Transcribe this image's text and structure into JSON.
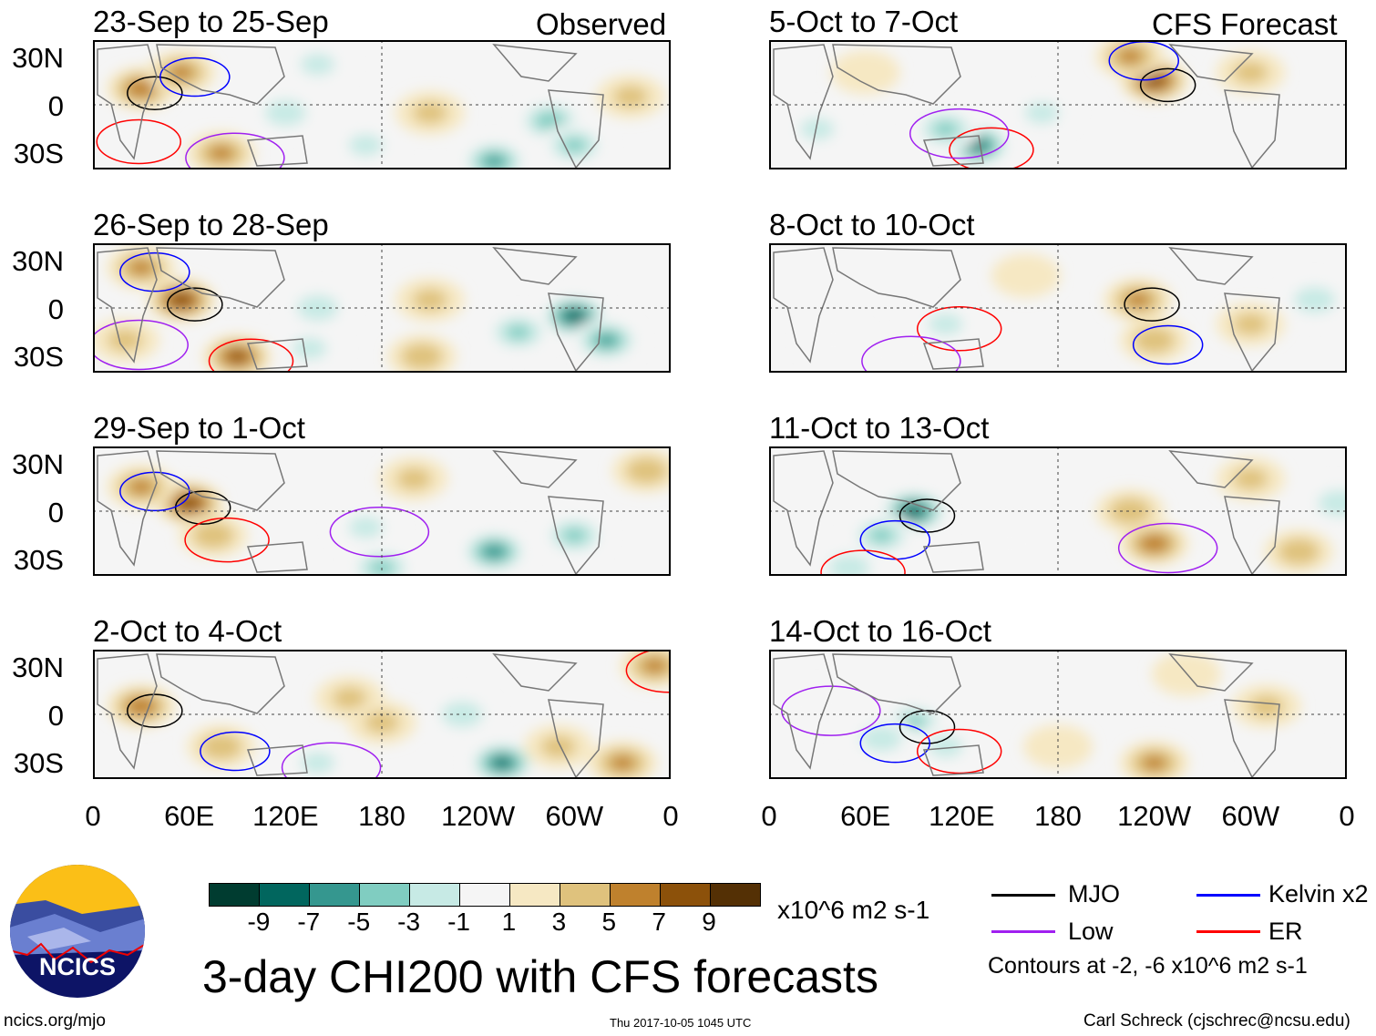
{
  "headers": {
    "observed": "Observed",
    "forecast": "CFS Forecast"
  },
  "lat_labels": [
    "30N",
    "0",
    "30S"
  ],
  "lon_labels": [
    "0",
    "60E",
    "120E",
    "180",
    "120W",
    "60W",
    "0"
  ],
  "panels": [
    {
      "title": "23-Sep to 25-Sep",
      "blobs": [
        [
          30,
          10,
          6
        ],
        [
          55,
          20,
          5
        ],
        [
          20,
          -20,
          -2
        ],
        [
          80,
          -30,
          5
        ],
        [
          140,
          25,
          -3
        ],
        [
          120,
          -5,
          -4
        ],
        [
          170,
          -25,
          -3
        ],
        [
          250,
          -35,
          -7
        ],
        [
          285,
          -10,
          -6
        ],
        [
          300,
          -25,
          -5
        ],
        [
          210,
          -5,
          3
        ],
        [
          335,
          5,
          3
        ]
      ]
    },
    {
      "title": "26-Sep to 28-Sep",
      "blobs": [
        [
          55,
          5,
          8
        ],
        [
          30,
          25,
          5
        ],
        [
          90,
          -30,
          7
        ],
        [
          20,
          -20,
          3
        ],
        [
          140,
          0,
          -4
        ],
        [
          135,
          -25,
          -3
        ],
        [
          210,
          5,
          3
        ],
        [
          300,
          -5,
          -10
        ],
        [
          265,
          -15,
          -5
        ],
        [
          320,
          -20,
          -7
        ],
        [
          205,
          -30,
          4
        ]
      ]
    },
    {
      "title": "29-Sep to 1-Oct",
      "blobs": [
        [
          60,
          5,
          8
        ],
        [
          30,
          15,
          5
        ],
        [
          75,
          -15,
          4
        ],
        [
          170,
          -10,
          -3
        ],
        [
          250,
          -25,
          -8
        ],
        [
          180,
          -35,
          -5
        ],
        [
          230,
          10,
          -2
        ],
        [
          300,
          -15,
          -5
        ],
        [
          200,
          20,
          3
        ],
        [
          345,
          25,
          4
        ]
      ]
    },
    {
      "title": "2-Oct to 4-Oct",
      "blobs": [
        [
          30,
          5,
          6
        ],
        [
          80,
          -20,
          4
        ],
        [
          350,
          30,
          5
        ],
        [
          140,
          -30,
          -3
        ],
        [
          160,
          10,
          3
        ],
        [
          230,
          0,
          -4
        ],
        [
          255,
          -30,
          -9
        ],
        [
          290,
          -20,
          3
        ],
        [
          330,
          -30,
          5
        ],
        [
          180,
          -5,
          3
        ]
      ]
    },
    {
      "title": "5-Oct to 7-Oct",
      "blobs": [
        [
          240,
          15,
          8
        ],
        [
          225,
          30,
          5
        ],
        [
          130,
          -25,
          -9
        ],
        [
          110,
          -15,
          -5
        ],
        [
          170,
          -5,
          -3
        ],
        [
          30,
          -15,
          -3
        ],
        [
          80,
          -35,
          -2
        ],
        [
          300,
          20,
          3
        ],
        [
          60,
          20,
          2
        ]
      ]
    },
    {
      "title": "8-Oct to 10-Oct",
      "blobs": [
        [
          230,
          5,
          5
        ],
        [
          240,
          -20,
          4
        ],
        [
          110,
          -10,
          -3
        ],
        [
          80,
          -30,
          -2
        ],
        [
          340,
          5,
          -4
        ],
        [
          300,
          -10,
          3
        ],
        [
          160,
          20,
          2
        ],
        [
          40,
          -20,
          -2
        ]
      ]
    },
    {
      "title": "11-Oct to 13-Oct",
      "blobs": [
        [
          90,
          0,
          -10
        ],
        [
          70,
          -15,
          -5
        ],
        [
          50,
          -35,
          -4
        ],
        [
          240,
          -20,
          6
        ],
        [
          225,
          0,
          4
        ],
        [
          300,
          20,
          3
        ],
        [
          330,
          -25,
          4
        ],
        [
          355,
          5,
          -4
        ],
        [
          150,
          -20,
          -2
        ]
      ]
    },
    {
      "title": "14-Oct to 16-Oct",
      "blobs": [
        [
          90,
          -5,
          -5
        ],
        [
          70,
          -15,
          -4
        ],
        [
          110,
          -20,
          -3
        ],
        [
          30,
          5,
          -2
        ],
        [
          240,
          -30,
          5
        ],
        [
          310,
          5,
          3
        ],
        [
          180,
          -20,
          2
        ],
        [
          260,
          25,
          2
        ],
        [
          320,
          -25,
          -2
        ]
      ]
    }
  ],
  "colorbar": {
    "colors": [
      "#003c30",
      "#01665e",
      "#35978f",
      "#80cdc1",
      "#c7eae5",
      "#f5f5f5",
      "#f6e8c3",
      "#dfc27d",
      "#bf812d",
      "#8c510a",
      "#543005"
    ],
    "labels": [
      "-9",
      "-7",
      "-5",
      "-3",
      "-1",
      "1",
      "3",
      "5",
      "7",
      "9"
    ],
    "units": "x10^6 m2 s-1"
  },
  "legend": {
    "mjo": {
      "label": "MJO",
      "color": "#000000"
    },
    "kelvin": {
      "label": "Kelvin x2",
      "color": "#0000ff"
    },
    "low": {
      "label": "Low",
      "color": "#a020f0"
    },
    "er": {
      "label": "ER",
      "color": "#ff0000"
    },
    "contours": "Contours at -2, -6 x10^6 m2 s-1"
  },
  "logo": {
    "text": "NCICS"
  },
  "main_title": "3-day CHI200 with CFS forecasts",
  "footer": {
    "url": "ncics.org/mjo",
    "timestamp": "Thu 2017-10-05 1045 UTC",
    "author": "Carl Schreck (cjschrec@ncsu.edu)"
  }
}
